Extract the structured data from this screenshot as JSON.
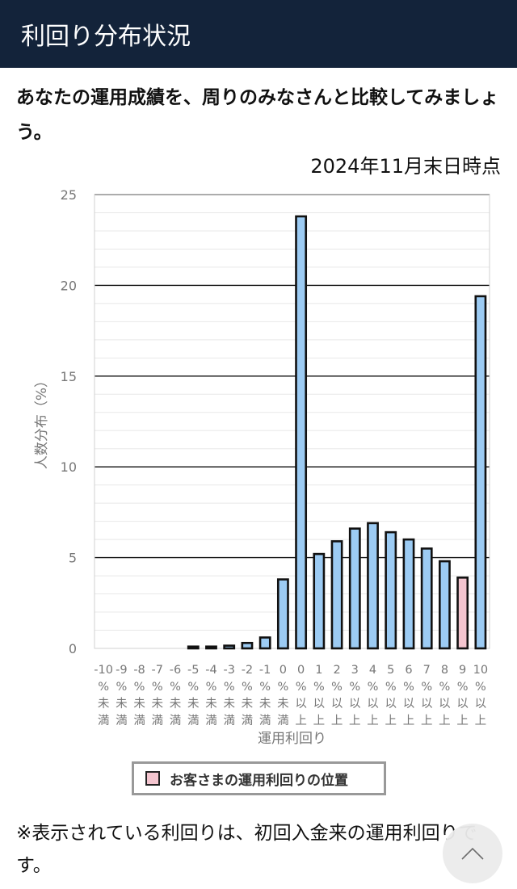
{
  "header": {
    "title": "利回り分布状況"
  },
  "lead": "あなたの運用成績を、周りのみなさんと比較してみましょう。",
  "date": "2024年11月末日時点",
  "chart_data": {
    "type": "bar",
    "title": "",
    "xlabel": "運用利回り",
    "ylabel": "人数分布（%）",
    "ylim": [
      0,
      25
    ],
    "yticks": [
      0,
      5,
      10,
      15,
      20,
      25
    ],
    "grid": true,
    "categories": [
      [
        "-10",
        "%",
        "未",
        "満"
      ],
      [
        "-9",
        "%",
        "未",
        "満"
      ],
      [
        "-8",
        "%",
        "未",
        "満"
      ],
      [
        "-7",
        "%",
        "未",
        "満"
      ],
      [
        "-6",
        "%",
        "未",
        "満"
      ],
      [
        "-5",
        "%",
        "未",
        "満"
      ],
      [
        "-4",
        "%",
        "未",
        "満"
      ],
      [
        "-3",
        "%",
        "未",
        "満"
      ],
      [
        "-2",
        "%",
        "未",
        "満"
      ],
      [
        "-1",
        "%",
        "未",
        "満"
      ],
      [
        "0",
        "%",
        "未",
        "満"
      ],
      [
        "0",
        "%",
        "以",
        "上"
      ],
      [
        "1",
        "%",
        "以",
        "上"
      ],
      [
        "2",
        "%",
        "以",
        "上"
      ],
      [
        "3",
        "%",
        "以",
        "上"
      ],
      [
        "4",
        "%",
        "以",
        "上"
      ],
      [
        "5",
        "%",
        "以",
        "上"
      ],
      [
        "6",
        "%",
        "以",
        "上"
      ],
      [
        "7",
        "%",
        "以",
        "上"
      ],
      [
        "8",
        "%",
        "以",
        "上"
      ],
      [
        "9",
        "%",
        "以",
        "上"
      ],
      [
        "10",
        "%",
        "以",
        "上"
      ]
    ],
    "values": [
      0,
      0,
      0,
      0,
      0,
      0.1,
      0.1,
      0.15,
      0.3,
      0.6,
      3.8,
      23.8,
      5.2,
      5.9,
      6.6,
      6.9,
      6.4,
      6.0,
      5.5,
      4.8,
      3.9,
      19.4
    ],
    "highlight_index": 20,
    "colors": {
      "bar": "#9ccbf3",
      "highlight": "#f4c5cf",
      "outline": "#111111"
    },
    "legend": {
      "label": "お客さまの運用利回りの位置",
      "placement": "bottom"
    }
  },
  "note": "※表示されている利回りは、初回入金来の運用利回りです。",
  "scroll_top": {
    "icon": "chevron-up-icon"
  }
}
